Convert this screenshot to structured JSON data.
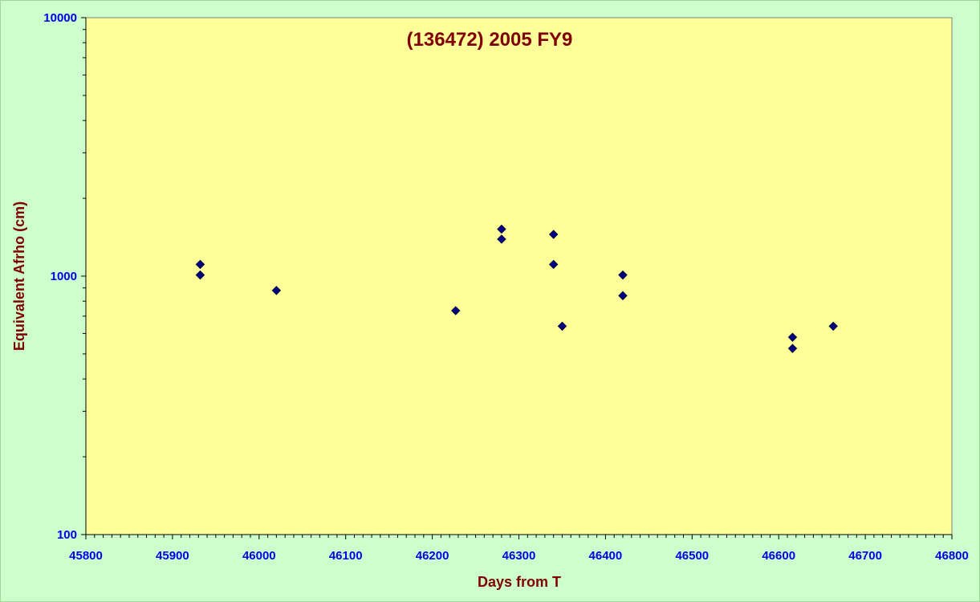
{
  "chart_data": {
    "type": "scatter",
    "title": "(136472) 2005 FY9",
    "xlabel": "Days from T",
    "ylabel": "Equivalent Afrho (cm)",
    "xlim": [
      45800,
      46800
    ],
    "ylim": [
      100,
      10000
    ],
    "yscale": "log",
    "x_ticks": [
      "45800",
      "45900",
      "46000",
      "46100",
      "46200",
      "46300",
      "46400",
      "46500",
      "46600",
      "46700",
      "46800"
    ],
    "y_ticks": [
      "100",
      "1000",
      "10000"
    ],
    "grid": false,
    "legend": "none",
    "series": [
      {
        "marker": "diamond",
        "color": "#000080",
        "points": [
          {
            "x": 45932,
            "y": 1110
          },
          {
            "x": 45932,
            "y": 1010
          },
          {
            "x": 46020,
            "y": 880
          },
          {
            "x": 46227,
            "y": 735
          },
          {
            "x": 46280,
            "y": 1520
          },
          {
            "x": 46280,
            "y": 1390
          },
          {
            "x": 46340,
            "y": 1450
          },
          {
            "x": 46340,
            "y": 1110
          },
          {
            "x": 46350,
            "y": 640
          },
          {
            "x": 46420,
            "y": 1010
          },
          {
            "x": 46420,
            "y": 840
          },
          {
            "x": 46616,
            "y": 580
          },
          {
            "x": 46616,
            "y": 525
          },
          {
            "x": 46663,
            "y": 640
          }
        ]
      }
    ]
  },
  "colors": {
    "page_background": "#ccffcc",
    "plot_background": "#ffff99",
    "marker_fill": "#000080",
    "tick_label": "#0000ee",
    "title": "#800000"
  }
}
